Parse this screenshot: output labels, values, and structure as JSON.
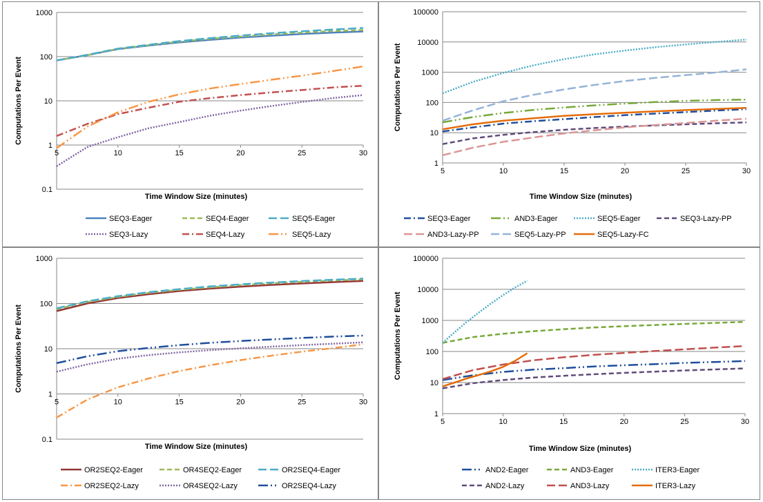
{
  "chart_data": [
    {
      "type": "line",
      "xlabel": "Time Window Size (minutes)",
      "ylabel": "Computations Per Event",
      "yscale": "log",
      "xlim": [
        5,
        30
      ],
      "ylim": [
        0.1,
        1000
      ],
      "xticks": [
        "5",
        "10",
        "15",
        "20",
        "25",
        "30"
      ],
      "yticks": [
        "0.1",
        "1",
        "10",
        "100",
        "1000"
      ],
      "legend_position": "bottom",
      "series": [
        {
          "name": "SEQ3-Eager",
          "color": "#4F81BD",
          "dash": "solid",
          "x": [
            5,
            7.5,
            10,
            12.5,
            15,
            17.5,
            20,
            22.5,
            25,
            27.5,
            30
          ],
          "values": [
            82,
            108,
            148,
            178,
            210,
            240,
            270,
            298,
            325,
            350,
            370
          ]
        },
        {
          "name": "SEQ4-Eager",
          "color": "#9BBB59",
          "dash": "dash",
          "x": [
            5,
            7.5,
            10,
            12.5,
            15,
            17.5,
            20,
            22.5,
            25,
            27.5,
            30
          ],
          "values": [
            82,
            108,
            150,
            182,
            218,
            252,
            285,
            318,
            350,
            378,
            400
          ]
        },
        {
          "name": "SEQ5-Eager",
          "color": "#4BACC6",
          "dash": "longdash",
          "x": [
            5,
            7.5,
            10,
            12.5,
            15,
            17.5,
            20,
            22.5,
            25,
            27.5,
            30
          ],
          "values": [
            82,
            110,
            152,
            186,
            225,
            262,
            300,
            338,
            375,
            410,
            445
          ]
        },
        {
          "name": "SEQ3-Lazy",
          "color": "#8064A2",
          "dash": "dot",
          "x": [
            5,
            7.5,
            10,
            12.5,
            15,
            17.5,
            20,
            22.5,
            25,
            27.5,
            30
          ],
          "values": [
            0.33,
            0.9,
            1.5,
            2.4,
            3.3,
            4.6,
            6,
            7.6,
            9.4,
            11.5,
            13.5
          ]
        },
        {
          "name": "SEQ4-Lazy",
          "color": "#C0504D",
          "dash": "dashdot",
          "x": [
            5,
            7.5,
            10,
            12.5,
            15,
            17.5,
            20,
            22.5,
            25,
            27.5,
            30
          ],
          "values": [
            1.6,
            3,
            5,
            7,
            9.5,
            11.5,
            13.5,
            15.5,
            17.5,
            20,
            22
          ]
        },
        {
          "name": "SEQ5-Lazy",
          "color": "#F79646",
          "dash": "longdashdotdot",
          "x": [
            5,
            7.5,
            10,
            12.5,
            15,
            17.5,
            20,
            22.5,
            25,
            27.5,
            30
          ],
          "values": [
            0.85,
            2.6,
            5.5,
            9.5,
            14,
            19,
            24,
            30,
            37,
            47,
            60
          ]
        }
      ]
    },
    {
      "type": "line",
      "xlabel": "Time Window Size (minutes)",
      "ylabel": "Computations Per Event",
      "yscale": "log",
      "xlim": [
        5,
        30
      ],
      "ylim": [
        1,
        100000
      ],
      "xticks": [
        "5",
        "10",
        "15",
        "20",
        "25",
        "30"
      ],
      "yticks": [
        "1",
        "10",
        "100",
        "1000",
        "10000",
        "100000"
      ],
      "legend_position": "bottom",
      "series": [
        {
          "name": "SEQ3-Eager",
          "color": "#1F4E9C",
          "dash": "dashdot",
          "x": [
            5,
            7.5,
            10,
            12.5,
            15,
            17.5,
            20,
            22.5,
            25,
            27.5,
            30
          ],
          "values": [
            11,
            15,
            20,
            24,
            28,
            33,
            38,
            43,
            48,
            54,
            60
          ]
        },
        {
          "name": "AND3-Eager",
          "color": "#77A838",
          "dash": "longdashdotdot",
          "x": [
            5,
            7.5,
            10,
            12.5,
            15,
            17.5,
            20,
            22.5,
            25,
            27.5,
            30
          ],
          "values": [
            22,
            33,
            45,
            57,
            68,
            80,
            92,
            103,
            113,
            120,
            125
          ]
        },
        {
          "name": "SEQ5-Eager",
          "color": "#4BACC6",
          "dash": "dot",
          "x": [
            5,
            7.5,
            10,
            12.5,
            15,
            17.5,
            20,
            22.5,
            25,
            27.5,
            30
          ],
          "values": [
            200,
            480,
            950,
            1700,
            2700,
            3900,
            5200,
            6700,
            8300,
            10000,
            12000
          ]
        },
        {
          "name": "SEQ3-Lazy-PP",
          "color": "#604A7B",
          "dash": "dash",
          "x": [
            5,
            7.5,
            10,
            12.5,
            15,
            17.5,
            20,
            22.5,
            25,
            27.5,
            30
          ],
          "values": [
            4.2,
            6.5,
            8.5,
            10.5,
            12.5,
            14.3,
            16,
            17.5,
            19,
            20.5,
            22
          ]
        },
        {
          "name": "AND3-Lazy-PP",
          "color": "#D99694",
          "dash": "longdash",
          "x": [
            5,
            7.5,
            10,
            12.5,
            15,
            17.5,
            20,
            22.5,
            25,
            27.5,
            30
          ],
          "values": [
            1.8,
            3.2,
            5,
            7,
            9.5,
            12,
            15,
            18,
            21,
            25,
            29
          ]
        },
        {
          "name": "SEQ5-Lazy-PP",
          "color": "#95B3D7",
          "dash": "longdash",
          "x": [
            5,
            7.5,
            10,
            12.5,
            15,
            17.5,
            20,
            22.5,
            25,
            27.5,
            30
          ],
          "values": [
            25,
            55,
            110,
            180,
            270,
            380,
            510,
            650,
            800,
            980,
            1250
          ]
        },
        {
          "name": "SEQ5-Lazy-FC",
          "color": "#E46C0A",
          "dash": "solid",
          "x": [
            5,
            7.5,
            10,
            12.5,
            15,
            17.5,
            20,
            22.5,
            25,
            27.5,
            30
          ],
          "values": [
            13,
            19,
            25,
            30,
            36,
            41,
            46,
            51,
            56,
            61,
            66
          ]
        }
      ]
    },
    {
      "type": "line",
      "xlabel": "Time Window Size (minutes)",
      "ylabel": "Computations Per Event",
      "yscale": "log",
      "xlim": [
        5,
        30
      ],
      "ylim": [
        0.1,
        1000
      ],
      "xticks": [
        "5",
        "10",
        "15",
        "20",
        "25",
        "30"
      ],
      "yticks": [
        "0.1",
        "1",
        "10",
        "100",
        "1000"
      ],
      "legend_position": "bottom",
      "series": [
        {
          "name": "OR2SEQ2-Eager",
          "color": "#953735",
          "dash": "solid",
          "x": [
            5,
            7.5,
            10,
            12.5,
            15,
            17.5,
            20,
            22.5,
            25,
            27.5,
            30
          ],
          "values": [
            68,
            100,
            132,
            160,
            188,
            213,
            236,
            257,
            277,
            296,
            315
          ]
        },
        {
          "name": "OR4SEQ2-Eager",
          "color": "#9BBB59",
          "dash": "dash",
          "x": [
            5,
            7.5,
            10,
            12.5,
            15,
            17.5,
            20,
            22.5,
            25,
            27.5,
            30
          ],
          "values": [
            75,
            108,
            140,
            172,
            200,
            228,
            255,
            280,
            302,
            322,
            342
          ]
        },
        {
          "name": "OR2SEQ4-Eager",
          "color": "#4BACC6",
          "dash": "longdash",
          "x": [
            5,
            7.5,
            10,
            12.5,
            15,
            17.5,
            20,
            22.5,
            25,
            27.5,
            30
          ],
          "values": [
            78,
            112,
            145,
            178,
            208,
            238,
            265,
            290,
            314,
            335,
            355
          ]
        },
        {
          "name": "OR2SEQ2-Lazy",
          "color": "#F79646",
          "dash": "dashdot",
          "x": [
            5,
            7.5,
            10,
            12.5,
            15,
            17.5,
            20,
            22.5,
            25,
            27.5,
            30
          ],
          "values": [
            0.3,
            0.75,
            1.4,
            2.2,
            3.2,
            4.3,
            5.6,
            7,
            8.6,
            10.3,
            12.5
          ]
        },
        {
          "name": "OR4SEQ2-Lazy",
          "color": "#8064A2",
          "dash": "dot",
          "x": [
            5,
            7.5,
            10,
            12.5,
            15,
            17.5,
            20,
            22.5,
            25,
            27.5,
            30
          ],
          "values": [
            3.1,
            4.5,
            6,
            7.2,
            8.3,
            9.3,
            10.2,
            11.1,
            12,
            12.9,
            13.8
          ]
        },
        {
          "name": "OR2SEQ4-Lazy",
          "color": "#1F4E9C",
          "dash": "longdashdotdot",
          "x": [
            5,
            7.5,
            10,
            12.5,
            15,
            17.5,
            20,
            22.5,
            25,
            27.5,
            30
          ],
          "values": [
            4.8,
            6.8,
            8.8,
            10.4,
            12,
            13.5,
            14.8,
            16,
            17.3,
            18.5,
            19.5
          ]
        }
      ]
    },
    {
      "type": "line",
      "xlabel": "Time Window Size (minutes)",
      "ylabel": "Computations Per Event",
      "yscale": "log",
      "xlim": [
        5,
        30
      ],
      "ylim": [
        1,
        100000
      ],
      "xticks": [
        "5",
        "10",
        "15",
        "20",
        "25",
        "30"
      ],
      "yticks": [
        "1",
        "10",
        "100",
        "1000",
        "10000",
        "100000"
      ],
      "legend_position": "bottom",
      "series": [
        {
          "name": "AND2-Eager",
          "color": "#1F4E9C",
          "dash": "longdashdotdot",
          "x": [
            5,
            7.5,
            10,
            12.5,
            15,
            17.5,
            20,
            22.5,
            25,
            27.5,
            30
          ],
          "values": [
            12,
            17,
            22,
            26,
            29,
            33,
            36,
            39,
            43,
            46,
            49
          ]
        },
        {
          "name": "AND3-Eager",
          "color": "#77A838",
          "dash": "dash",
          "x": [
            5,
            7.5,
            10,
            12.5,
            15,
            17.5,
            20,
            22.5,
            25,
            27.5,
            30
          ],
          "values": [
            190,
            290,
            370,
            450,
            520,
            590,
            650,
            710,
            770,
            830,
            900
          ]
        },
        {
          "name": "ITER3-Eager",
          "color": "#4BACC6",
          "dash": "dot",
          "x": [
            5,
            6,
            7,
            8,
            9,
            10,
            11,
            12
          ],
          "values": [
            190,
            420,
            900,
            1800,
            3500,
            6500,
            11500,
            19000
          ]
        },
        {
          "name": "AND2-Lazy",
          "color": "#604A7B",
          "dash": "dash",
          "x": [
            5,
            7.5,
            10,
            12.5,
            15,
            17.5,
            20,
            22.5,
            25,
            27.5,
            30
          ],
          "values": [
            6.5,
            9.5,
            12,
            14.5,
            16.5,
            18.5,
            20.5,
            22.5,
            24.5,
            26.5,
            28.5
          ]
        },
        {
          "name": "AND3-Lazy",
          "color": "#C0504D",
          "dash": "longdash",
          "x": [
            5,
            7.5,
            10,
            12.5,
            15,
            17.5,
            20,
            22.5,
            25,
            27.5,
            30
          ],
          "values": [
            13,
            25,
            38,
            52,
            65,
            78,
            90,
            103,
            117,
            133,
            150
          ]
        },
        {
          "name": "ITER3-Lazy",
          "color": "#E46C0A",
          "dash": "solid",
          "x": [
            5,
            6,
            7,
            8,
            9,
            10,
            11,
            12
          ],
          "values": [
            7.5,
            10,
            13.5,
            17.5,
            23,
            32,
            50,
            88
          ]
        }
      ]
    }
  ]
}
